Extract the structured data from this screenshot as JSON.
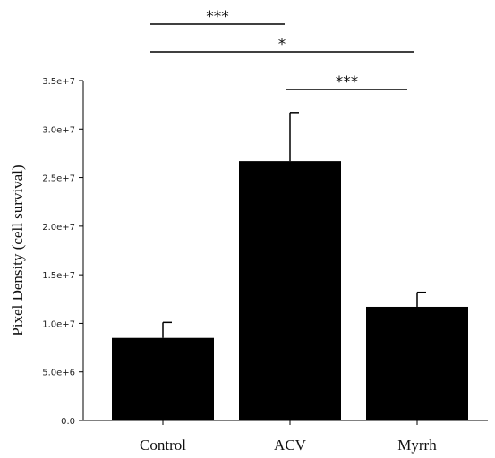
{
  "chart_data": {
    "type": "bar",
    "categories": [
      "Control",
      "ACV",
      "Myrrh"
    ],
    "values": [
      8500000,
      26700000,
      11700000
    ],
    "errors": [
      1600000,
      5000000,
      1500000
    ],
    "ylabel": "Pixel Density (cell survival)",
    "ylim": [
      0,
      35000000
    ],
    "yticks": [
      0,
      5000000,
      10000000,
      15000000,
      20000000,
      25000000,
      30000000,
      35000000
    ],
    "ytick_labels": [
      "0.0",
      "5.0e+6",
      "1.0e+7",
      "1.5e+7",
      "2.0e+7",
      "2.5e+7",
      "3.0e+7",
      "3.5e+7"
    ],
    "bar_color": "#000000",
    "grid": false,
    "significance": [
      {
        "from": 0,
        "to": 1,
        "label": "***",
        "level": 3
      },
      {
        "from": 0,
        "to": 2,
        "label": "*",
        "level": 2
      },
      {
        "from": 1,
        "to": 2,
        "label": "***",
        "level": 1
      }
    ]
  }
}
